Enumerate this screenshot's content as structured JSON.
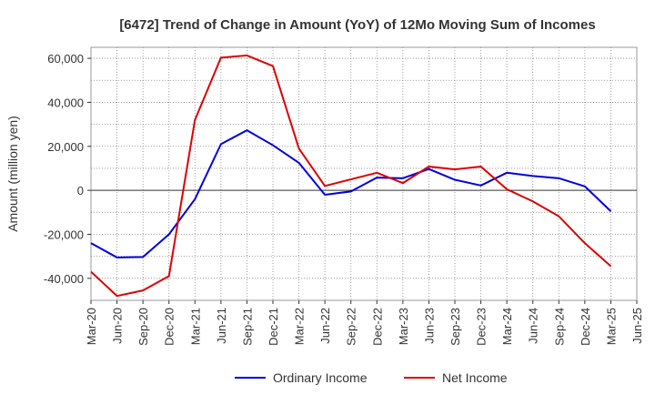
{
  "chart_data": {
    "type": "line",
    "title": "[6472]  Trend of Change in Amount (YoY) of 12Mo Moving Sum of Incomes",
    "xlabel": "",
    "ylabel": "Amount (million yen)",
    "categories": [
      "Mar-20",
      "Jun-20",
      "Sep-20",
      "Dec-20",
      "Mar-21",
      "Jun-21",
      "Sep-21",
      "Dec-21",
      "Mar-22",
      "Jun-22",
      "Sep-22",
      "Dec-22",
      "Mar-23",
      "Jun-23",
      "Sep-23",
      "Dec-23",
      "Mar-24",
      "Jun-24",
      "Sep-24",
      "Dec-24",
      "Mar-25",
      "Jun-25"
    ],
    "ylim": [
      -50000,
      65000
    ],
    "yticks": [
      -40000,
      -20000,
      0,
      20000,
      40000,
      60000
    ],
    "ytick_labels": [
      "-40,000",
      "-20,000",
      "0",
      "20,000",
      "40,000",
      "60,000"
    ],
    "grid": true,
    "legend_position": "bottom",
    "series": [
      {
        "name": "Ordinary Income",
        "color": "#0000dd",
        "values": [
          -24000,
          -30500,
          -30300,
          -20000,
          -4000,
          21000,
          27300,
          20500,
          12500,
          -2000,
          -500,
          5800,
          5500,
          9700,
          4800,
          2200,
          8000,
          6500,
          5500,
          1800,
          -9500,
          null
        ]
      },
      {
        "name": "Net Income",
        "color": "#dd0000",
        "values": [
          -37000,
          -48000,
          -45500,
          -39000,
          32000,
          60300,
          61300,
          56500,
          19000,
          2000,
          5000,
          8000,
          3300,
          10800,
          9500,
          10800,
          500,
          -5000,
          -11800,
          -24000,
          -34500,
          null
        ]
      }
    ]
  }
}
